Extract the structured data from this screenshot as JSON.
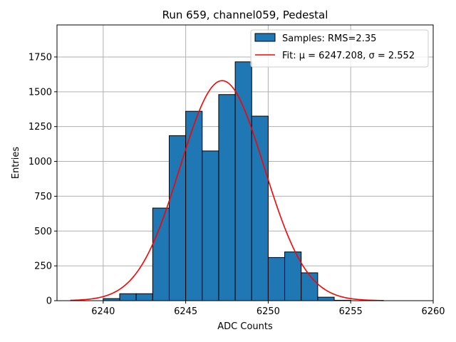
{
  "chart_data": {
    "type": "histogram",
    "title": "Run 659, channel059, Pedestal",
    "xlabel": "ADC Counts",
    "ylabel": "Entries",
    "xlim": [
      6237.2,
      6260.0
    ],
    "ylim": [
      0,
      1980
    ],
    "xticks": [
      6240,
      6245,
      6250,
      6255,
      6260
    ],
    "xtick_labels": [
      "6240",
      "6245",
      "6250",
      "6255",
      "6260"
    ],
    "yticks": [
      0,
      250,
      500,
      750,
      1000,
      1250,
      1500,
      1750
    ],
    "ytick_labels": [
      "0",
      "250",
      "500",
      "750",
      "1000",
      "1250",
      "1500",
      "1750"
    ],
    "grid": true,
    "legend_position": "top-right",
    "bins": [
      {
        "left": 6240,
        "right": 6241,
        "value": 15
      },
      {
        "left": 6241,
        "right": 6242,
        "value": 50
      },
      {
        "left": 6242,
        "right": 6243,
        "value": 50
      },
      {
        "left": 6243,
        "right": 6244,
        "value": 665
      },
      {
        "left": 6244,
        "right": 6245,
        "value": 1185
      },
      {
        "left": 6245,
        "right": 6246,
        "value": 1360
      },
      {
        "left": 6246,
        "right": 6247,
        "value": 1075
      },
      {
        "left": 6247,
        "right": 6248,
        "value": 1480
      },
      {
        "left": 6248,
        "right": 6249,
        "value": 1715
      },
      {
        "left": 6249,
        "right": 6250,
        "value": 1325
      },
      {
        "left": 6250,
        "right": 6251,
        "value": 310
      },
      {
        "left": 6251,
        "right": 6252,
        "value": 350
      },
      {
        "left": 6252,
        "right": 6253,
        "value": 200
      },
      {
        "left": 6253,
        "right": 6254,
        "value": 25
      },
      {
        "left": 6254,
        "right": 6255,
        "value": 3
      }
    ],
    "fit": {
      "mu": 6247.208,
      "sigma": 2.552,
      "peak": 1580,
      "x_range": [
        6238,
        6257
      ]
    },
    "series": [
      {
        "name": "Samples: RMS=2.35",
        "kind": "histogram",
        "color": "#1f77b4"
      },
      {
        "name": "Fit: μ = 6247.208, σ = 2.552",
        "kind": "line",
        "color": "#ff0000"
      }
    ]
  }
}
